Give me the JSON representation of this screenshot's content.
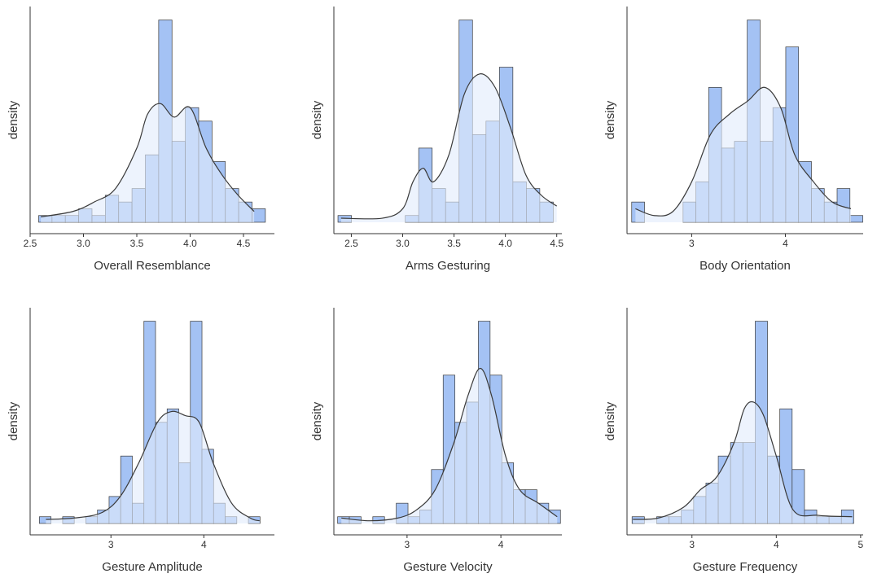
{
  "chart_data": [
    {
      "type": "histogram",
      "xlabel": "Overall Resemblance",
      "ylabel": "density",
      "color": "#a4c2f4",
      "line_color": "#3a3a3a",
      "xlim": [
        2.5,
        4.79
      ],
      "xticks": [
        2.5,
        {
          "value": 3,
          "label": "3.0"
        },
        3.5,
        {
          "value": 4,
          "label": "4.0"
        },
        4.5
      ],
      "ylim": [
        0,
        16
      ],
      "bins": [
        2.58,
        2.705,
        2.83,
        2.955,
        3.08,
        3.205,
        3.33,
        3.455,
        3.58,
        3.705,
        3.83,
        3.955,
        4.08,
        4.205,
        4.33,
        4.455,
        4.58,
        4.705
      ],
      "values": [
        0.5,
        0.5,
        0.5,
        1,
        0.5,
        2,
        1.5,
        2.5,
        5,
        15,
        6,
        8.5,
        7.5,
        4.5,
        2.5,
        1.5,
        1
      ],
      "density": {
        "x": [
          2.6,
          2.9,
          3.1,
          3.3,
          3.5,
          3.6,
          3.72,
          3.85,
          4.0,
          4.15,
          4.3,
          4.45,
          4.6
        ],
        "y": [
          0.4,
          0.8,
          1.5,
          2.5,
          5.5,
          8,
          8.8,
          7.8,
          8.5,
          5.5,
          3.5,
          2,
          0.8
        ]
      }
    },
    {
      "type": "histogram",
      "xlabel": "Arms Gesturing",
      "ylabel": "density",
      "color": "#a4c2f4",
      "line_color": "#3a3a3a",
      "xlim": [
        2.33,
        4.55
      ],
      "xticks": [
        2.5,
        {
          "value": 3,
          "label": "3.0"
        },
        3.5,
        {
          "value": 4,
          "label": "4.0"
        },
        4.5
      ],
      "ylim": [
        0,
        16
      ],
      "bins": [
        2.37,
        2.501,
        2.632,
        2.763,
        2.894,
        3.025,
        3.156,
        3.287,
        3.418,
        3.549,
        3.68,
        3.811,
        3.942,
        4.073,
        4.204,
        4.335,
        4.466
      ],
      "values": [
        0.5,
        0,
        0,
        0,
        0,
        0.5,
        5.5,
        2.5,
        1.5,
        15,
        6.5,
        7.5,
        11.5,
        3,
        2.5,
        1.5
      ],
      "density": {
        "x": [
          2.4,
          2.8,
          3.0,
          3.1,
          3.2,
          3.3,
          3.45,
          3.6,
          3.75,
          3.9,
          4.05,
          4.2,
          4.35,
          4.5
        ],
        "y": [
          0.3,
          0.3,
          1,
          3,
          4,
          3,
          5,
          9.5,
          11,
          10,
          7,
          3.5,
          2,
          1.2
        ]
      }
    },
    {
      "type": "histogram",
      "xlabel": "Body Orientation",
      "ylabel": "density",
      "color": "#a4c2f4",
      "line_color": "#3a3a3a",
      "xlim": [
        2.31,
        4.83
      ],
      "xticks": [
        3,
        4
      ],
      "ylim": [
        0,
        16
      ],
      "bins": [
        2.36,
        2.497,
        2.634,
        2.771,
        2.908,
        3.045,
        3.182,
        3.319,
        3.456,
        3.593,
        3.73,
        3.867,
        4.004,
        4.141,
        4.278,
        4.415,
        4.552,
        4.689,
        4.826
      ],
      "values": [
        1.5,
        0,
        0,
        0,
        1.5,
        3,
        10,
        5.5,
        6,
        15,
        6,
        8.5,
        13,
        4.5,
        2.5,
        1.5,
        2.5,
        0.5
      ],
      "density": {
        "x": [
          2.4,
          2.6,
          2.8,
          3.0,
          3.2,
          3.4,
          3.6,
          3.78,
          3.95,
          4.1,
          4.3,
          4.5,
          4.7
        ],
        "y": [
          1,
          0.5,
          0.8,
          3,
          6.5,
          8,
          9,
          10,
          8.5,
          5,
          3,
          1.5,
          1
        ]
      }
    },
    {
      "type": "histogram",
      "xlabel": "Gesture Amplitude",
      "ylabel": "density",
      "color": "#a4c2f4",
      "line_color": "#3a3a3a",
      "xlim": [
        2.13,
        4.76
      ],
      "xticks": [
        3,
        4
      ],
      "ylim": [
        0,
        16
      ],
      "bins": [
        2.23,
        2.355,
        2.48,
        2.605,
        2.73,
        2.855,
        2.98,
        3.105,
        3.23,
        3.355,
        3.48,
        3.605,
        3.73,
        3.855,
        3.98,
        4.105,
        4.23,
        4.355,
        4.48,
        4.605
      ],
      "values": [
        0.5,
        0,
        0.5,
        0,
        0.5,
        1,
        2,
        5,
        1.5,
        15,
        7.5,
        8.5,
        4.5,
        15,
        5.5,
        1.5,
        0.5,
        0,
        0.5
      ],
      "density": {
        "x": [
          2.3,
          2.6,
          2.9,
          3.1,
          3.3,
          3.5,
          3.65,
          3.8,
          3.95,
          4.1,
          4.3,
          4.5,
          4.6
        ],
        "y": [
          0.3,
          0.4,
          0.8,
          2,
          4.5,
          7.5,
          8.3,
          8,
          7.5,
          4.5,
          1.5,
          0.4,
          0.2
        ]
      }
    },
    {
      "type": "histogram",
      "xlabel": "Gesture Velocity",
      "ylabel": "density",
      "color": "#a4c2f4",
      "line_color": "#3a3a3a",
      "xlim": [
        2.22,
        4.65
      ],
      "xticks": [
        3,
        4
      ],
      "ylim": [
        0,
        16
      ],
      "bins": [
        2.26,
        2.385,
        2.51,
        2.635,
        2.76,
        2.885,
        3.01,
        3.135,
        3.26,
        3.385,
        3.51,
        3.635,
        3.76,
        3.885,
        4.01,
        4.135,
        4.26,
        4.385,
        4.51,
        4.635
      ],
      "values": [
        0.5,
        0.5,
        0,
        0.5,
        0,
        1.5,
        0.5,
        1,
        4,
        11,
        7.5,
        9,
        15,
        11,
        4.5,
        2.5,
        2.5,
        1.5,
        1
      ],
      "density": {
        "x": [
          2.3,
          2.6,
          2.9,
          3.1,
          3.3,
          3.5,
          3.65,
          3.78,
          3.9,
          4.05,
          4.2,
          4.4,
          4.6
        ],
        "y": [
          0.4,
          0.2,
          0.4,
          1,
          2.5,
          6,
          9.5,
          11.5,
          9.5,
          5,
          2.5,
          1.5,
          0.5
        ]
      }
    },
    {
      "type": "histogram",
      "xlabel": "Gesture Frequency",
      "ylabel": "density",
      "color": "#a4c2f4",
      "line_color": "#3a3a3a",
      "xlim": [
        2.23,
        5.03
      ],
      "xticks": [
        3,
        4,
        5
      ],
      "ylim": [
        0,
        16
      ],
      "bins": [
        2.29,
        2.436,
        2.582,
        2.728,
        2.874,
        3.02,
        3.166,
        3.312,
        3.458,
        3.604,
        3.75,
        3.896,
        4.042,
        4.188,
        4.334,
        4.48,
        4.626,
        4.772,
        4.918
      ],
      "values": [
        0.5,
        0,
        0.5,
        0.5,
        1,
        2,
        3,
        5,
        6,
        6,
        15,
        5,
        8.5,
        4,
        1,
        0.5,
        0.5,
        1
      ],
      "density": {
        "x": [
          2.3,
          2.6,
          2.9,
          3.1,
          3.3,
          3.5,
          3.62,
          3.73,
          3.85,
          4.0,
          4.2,
          4.5,
          4.9
        ],
        "y": [
          0.3,
          0.4,
          1.2,
          2.5,
          3.5,
          6,
          8.5,
          9,
          8,
          5,
          1,
          0.6,
          0.5
        ]
      }
    }
  ]
}
